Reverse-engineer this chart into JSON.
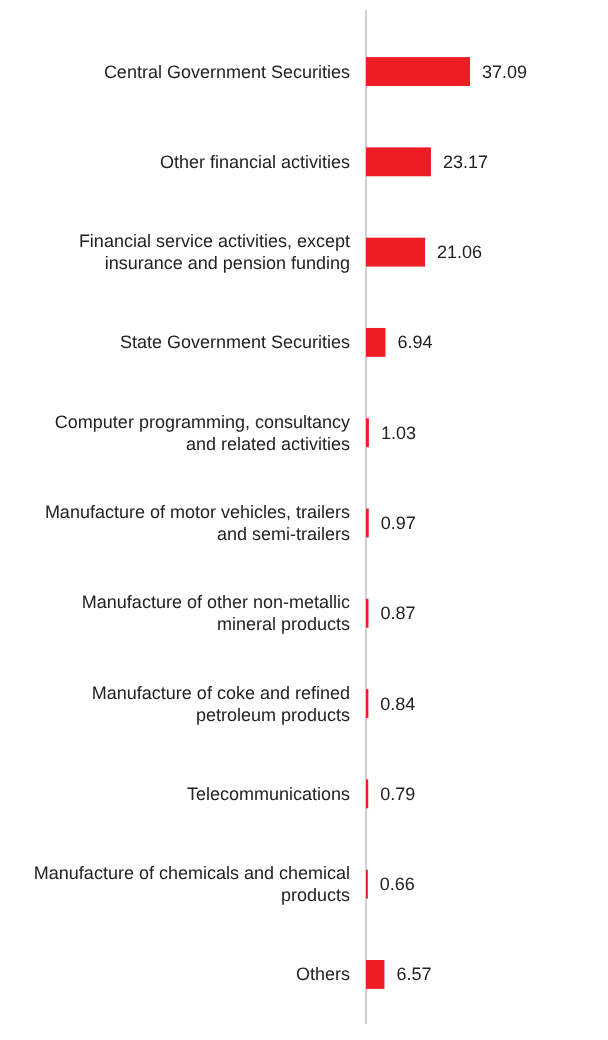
{
  "chart_data": {
    "type": "bar",
    "orientation": "horizontal",
    "data_labels": true,
    "categories": [
      "Central Government Securities",
      "Other financial activities",
      "Financial service activities, except insurance and pension funding",
      "State Government Securities",
      "Computer programming, consultancy and related activities",
      "Manufacture of motor vehicles, trailers and semi-trailers",
      "Manufacture of other non-metallic mineral products",
      "Manufacture of coke and refined petroleum products",
      "Telecommunications",
      "Manufacture of chemicals and chemical products",
      "Others"
    ],
    "values": [
      37.09,
      23.17,
      21.06,
      6.94,
      1.03,
      0.97,
      0.87,
      0.84,
      0.79,
      0.66,
      6.57
    ],
    "color": "#ee1c25"
  }
}
